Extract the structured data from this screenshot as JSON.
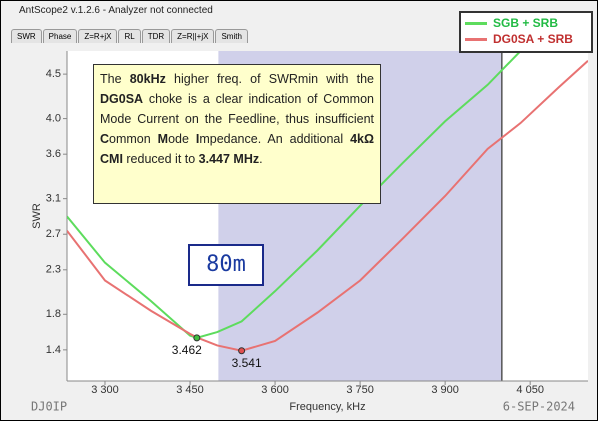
{
  "window_title": "AntScope2 v.1.2.6 - Analyzer not connected",
  "tabs": [
    "SWR",
    "Phase",
    "Z=R+jX",
    "RL",
    "TDR",
    "Z=R||+jX",
    "Smith"
  ],
  "chart_data": {
    "type": "line",
    "x_label": "Frequency, kHz",
    "y_label": "SWR",
    "x": [
      3233,
      3300,
      3381,
      3450,
      3462,
      3498,
      3541,
      3600,
      3675,
      3750,
      3825,
      3900,
      3975,
      4033,
      4100,
      4152
    ],
    "series": [
      {
        "name": "SGB + SRB",
        "color": "#5ddc5d",
        "legend_color": "#22bb44",
        "values": [
          2.9,
          2.38,
          1.95,
          1.56,
          1.535,
          1.6,
          1.72,
          2.06,
          2.52,
          3.02,
          3.5,
          3.97,
          4.38,
          4.76,
          null,
          null
        ]
      },
      {
        "name": "DG0SA + SRB",
        "color": "#e87272",
        "legend_color": "#c03030",
        "values": [
          2.74,
          2.18,
          1.84,
          1.58,
          1.54,
          1.45,
          1.39,
          1.5,
          1.82,
          2.18,
          2.65,
          3.13,
          3.66,
          3.95,
          4.35,
          4.65
        ]
      }
    ],
    "xlim": [
      3233,
      4152
    ],
    "ylim": [
      1.05,
      4.76
    ],
    "xticks": [
      {
        "value": 3300,
        "label": "3 300"
      },
      {
        "value": 3450,
        "label": "3 450"
      },
      {
        "value": 3600,
        "label": "3 600"
      },
      {
        "value": 3750,
        "label": "3 750"
      },
      {
        "value": 3900,
        "label": "3 900"
      },
      {
        "value": 4050,
        "label": "4 050"
      }
    ],
    "yticks": [
      1.4,
      1.8,
      2.3,
      2.7,
      3.1,
      3.6,
      {
        "value": 4.0,
        "label": "4.0"
      },
      4.5
    ],
    "grid": false,
    "shaded_range": [
      3500,
      4000
    ],
    "shade_color": "#d0d0ea",
    "markers": [
      {
        "x": 3462,
        "y": 1.535,
        "label": "3.462",
        "color": "#3fbf3f"
      },
      {
        "x": 3541,
        "y": 1.39,
        "label": "3.541",
        "color": "#e05050"
      }
    ],
    "band_label": "80m",
    "note": [
      "The ",
      "80kHz",
      " higher freq. of SWRmin with the ",
      "DG0SA",
      " choke is a clear indication of Common Mode Current on the Feedline, thus insufficient ",
      "C",
      "ommon ",
      "M",
      "ode ",
      "I",
      "mpedance.  An additional ",
      "4kΩ CMI",
      " reduced it to ",
      "3.447 MHz",
      "."
    ],
    "callsign": "DJ0IP",
    "date": "6-SEP-2024"
  }
}
